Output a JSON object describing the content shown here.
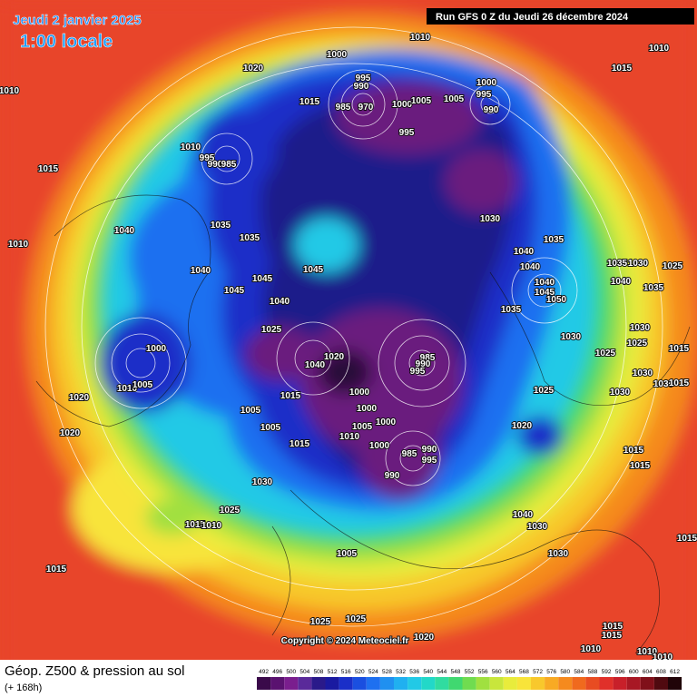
{
  "header": {
    "date": "Jeudi 2 janvier 2025",
    "time": "1:00 locale",
    "run": "Run GFS 0 Z du Jeudi 26 décembre 2024"
  },
  "map": {
    "pressure_labels": [
      1010,
      1010,
      1015,
      1010,
      1020,
      1000,
      995,
      990,
      985,
      970,
      1000,
      1005,
      1005,
      1000,
      995,
      990,
      995,
      1015,
      1010,
      995,
      990,
      985,
      1015,
      1030,
      1035,
      1040,
      1040,
      1040,
      1045,
      1050,
      1035,
      1030,
      1025,
      1040,
      1035,
      1035,
      1030,
      1030,
      1025,
      1025,
      1030,
      1025,
      1030,
      1030,
      1015,
      1010,
      1040,
      1035,
      1035,
      1045,
      1040,
      1045,
      1045,
      1040,
      1025,
      1020,
      1040,
      985,
      990,
      995,
      1000,
      1000,
      1005,
      1000,
      1010,
      1015,
      1005,
      1005,
      1015,
      1000,
      1010,
      1005,
      1020,
      1020,
      1020,
      1000,
      985,
      990,
      995,
      990,
      1030,
      1025,
      1015,
      1010,
      1040,
      1030,
      1030,
      1005,
      1015,
      1015,
      1025,
      1025,
      1020,
      1015,
      1015,
      1010,
      1010,
      1010,
      1015,
      1015,
      1015
    ],
    "copyright": "Copyright © 2024 Meteociel.fr"
  },
  "legend": {
    "title": "Géop. Z500 & pression au sol",
    "subtitle": "(+ 168h)",
    "scale": [
      492,
      496,
      500,
      504,
      508,
      512,
      516,
      520,
      524,
      528,
      532,
      536,
      540,
      544,
      548,
      552,
      556,
      560,
      564,
      568,
      572,
      576,
      580,
      584,
      588,
      592,
      596,
      600,
      604,
      608,
      612
    ],
    "colors": [
      "#3a0a4a",
      "#5a1270",
      "#7a1e8e",
      "#5a2a9a",
      "#2a1a8a",
      "#1a1aa0",
      "#1a2fc8",
      "#1a4fe0",
      "#1e70f0",
      "#2090f0",
      "#20b0f0",
      "#22c9e6",
      "#22d8c8",
      "#30dca0",
      "#40d870",
      "#70dc50",
      "#a0e040",
      "#c8e63c",
      "#e8ec3c",
      "#f8e43a",
      "#f8c82c",
      "#f8aa24",
      "#f58a1e",
      "#f06a1e",
      "#e84c22",
      "#e0302a",
      "#c8202a",
      "#a81824",
      "#80101a",
      "#500a10",
      "#200408"
    ]
  }
}
